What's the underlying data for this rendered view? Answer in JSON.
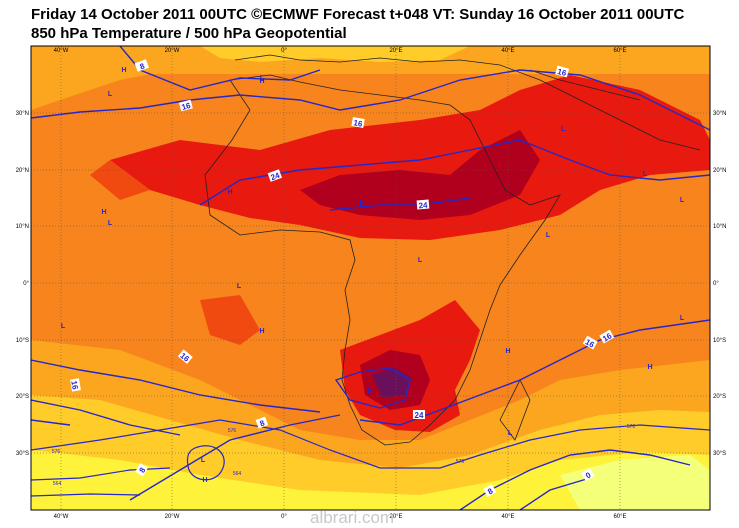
{
  "header": {
    "title_line1": "Friday 14 October 2011 00UTC ©ECMWF Forecast t+048 VT: Sunday 16 October 2011 00UTC",
    "title_line2": "850 hPa Temperature / 500 hPa Geopotential"
  },
  "axes": {
    "lon_labels": [
      "40°W",
      "20°W",
      "0°",
      "20°E",
      "40°E",
      "60°E"
    ],
    "lat_labels": [
      "30°N",
      "20°N",
      "10°N",
      "0°",
      "10°S",
      "20°S",
      "30°S"
    ]
  },
  "contour_labels": {
    "temperature": [
      "8",
      "16",
      "16",
      "24",
      "24",
      "16",
      "16",
      "16",
      "24",
      "8",
      "8",
      "8",
      "0",
      "16",
      "16"
    ],
    "geopotential": [
      "576",
      "576",
      "576",
      "576",
      "564",
      "564"
    ]
  },
  "pressure_centers": {
    "highs": [
      "H",
      "H",
      "H",
      "H",
      "H",
      "H",
      "H",
      "H",
      "H",
      "H"
    ],
    "lows": [
      "L",
      "L",
      "L",
      "L",
      "L",
      "L",
      "L",
      "L",
      "L",
      "L",
      "L",
      "L",
      "L"
    ]
  },
  "colors": {
    "deep_purple": "#6a0f5a",
    "dark_red": "#b0001e",
    "red": "#e8190f",
    "red_orange": "#f04a10",
    "orange": "#f7841c",
    "light_orange": "#fca61f",
    "yellow_orange": "#ffcc2a",
    "yellow": "#fff23a",
    "pale_yellow": "#f4ff7a",
    "contour_blue": "#2727c8"
  },
  "watermark": "albrari.com"
}
